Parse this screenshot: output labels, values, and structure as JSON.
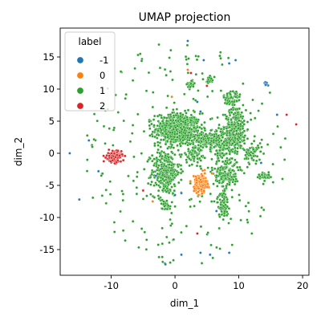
{
  "chart_data": {
    "type": "scatter",
    "title": "UMAP projection",
    "xlabel": "dim_1",
    "ylabel": "dim_2",
    "xlim": [
      -18,
      21
    ],
    "ylim": [
      -19,
      19.5
    ],
    "xticks": [
      -10,
      0,
      10,
      20
    ],
    "yticks": [
      -15,
      -10,
      -5,
      0,
      5,
      10,
      15
    ],
    "grid": false,
    "legend": {
      "title": "label",
      "placement": "top-left",
      "entries": [
        {
          "label": "-1",
          "color": "#1f77b4"
        },
        {
          "label": "0",
          "color": "#ff7f0e"
        },
        {
          "label": "1",
          "color": "#2ca02c"
        },
        {
          "label": "2",
          "color": "#d62728"
        }
      ]
    },
    "series": [
      {
        "label": "1",
        "color": "#2ca02c",
        "clusters": [
          {
            "cx": 0.5,
            "cy": 3.8,
            "rx": 3.2,
            "ry": 2.2,
            "n": 650
          },
          {
            "cx": -1.5,
            "cy": -3.0,
            "rx": 2.0,
            "ry": 3.2,
            "n": 300
          },
          {
            "cx": 9.5,
            "cy": 4.0,
            "rx": 1.5,
            "ry": 3.2,
            "n": 280
          },
          {
            "cx": 7.5,
            "cy": 1.5,
            "rx": 1.8,
            "ry": 1.8,
            "n": 150
          },
          {
            "cx": 8.0,
            "cy": -3.0,
            "rx": 1.8,
            "ry": 2.2,
            "n": 180
          },
          {
            "cx": 5.0,
            "cy": 2.0,
            "rx": 1.6,
            "ry": 1.0,
            "n": 120
          },
          {
            "cx": 3.0,
            "cy": 0.0,
            "rx": 1.2,
            "ry": 1.5,
            "n": 80
          },
          {
            "cx": 7.5,
            "cy": -8.0,
            "rx": 0.8,
            "ry": 1.8,
            "n": 70
          },
          {
            "cx": 9.0,
            "cy": 8.5,
            "rx": 1.2,
            "ry": 1.5,
            "n": 60
          },
          {
            "cx": 12.0,
            "cy": 0.0,
            "rx": 1.0,
            "ry": 1.5,
            "n": 60
          },
          {
            "cx": 14.0,
            "cy": -3.5,
            "rx": 0.8,
            "ry": 0.5,
            "n": 40
          },
          {
            "cx": 2.5,
            "cy": 10.8,
            "rx": 0.5,
            "ry": 0.6,
            "n": 25
          },
          {
            "cx": 5.5,
            "cy": 11.5,
            "rx": 0.5,
            "ry": 0.6,
            "n": 20
          },
          {
            "cx": -1.5,
            "cy": -8.0,
            "rx": 0.7,
            "ry": 0.7,
            "n": 25
          }
        ],
        "scatter": {
          "cx": 1.5,
          "cy": 0.0,
          "rx": 16.0,
          "ry": 17.5,
          "n": 260
        }
      },
      {
        "label": "0",
        "color": "#ff7f0e",
        "clusters": [
          {
            "cx": 4.0,
            "cy": -4.7,
            "rx": 0.9,
            "ry": 1.3,
            "n": 220
          }
        ],
        "points": [
          [
            -0.5,
            8.8
          ],
          [
            2.0,
            13.0
          ],
          [
            -3.5,
            -7.5
          ]
        ]
      },
      {
        "label": "2",
        "color": "#d62728",
        "clusters": [
          {
            "cx": -9.5,
            "cy": -0.5,
            "rx": 1.0,
            "ry": 0.8,
            "n": 160
          }
        ],
        "points": [
          [
            5.0,
            10.5
          ],
          [
            17.5,
            6.0
          ],
          [
            19.0,
            4.5
          ],
          [
            3.5,
            -12.5
          ],
          [
            -5.0,
            -5.8
          ],
          [
            2.5,
            12.5
          ]
        ]
      },
      {
        "label": "-1",
        "color": "#1f77b4",
        "clusters": [
          {
            "cx": 14.3,
            "cy": 10.8,
            "rx": 0.3,
            "ry": 0.4,
            "n": 8
          }
        ],
        "points": [
          [
            2.0,
            17.5
          ],
          [
            4.5,
            14.5
          ],
          [
            8.5,
            14.0
          ],
          [
            9.5,
            14.5
          ],
          [
            -13.5,
            2.0
          ],
          [
            -16.5,
            0.0
          ],
          [
            -15.0,
            -7.2
          ],
          [
            -12.0,
            -2.8
          ],
          [
            0.0,
            -6.5
          ],
          [
            1.0,
            -6.2
          ],
          [
            3.5,
            8.0
          ],
          [
            4.0,
            6.5
          ],
          [
            16.0,
            6.0
          ],
          [
            13.5,
            -1.5
          ],
          [
            -1.5,
            -17.3
          ],
          [
            1.0,
            -15.8
          ],
          [
            4.0,
            -15.5
          ],
          [
            5.5,
            -15.8
          ],
          [
            8.5,
            -15.5
          ],
          [
            6.5,
            -9.0
          ],
          [
            -3.0,
            -3.5
          ]
        ]
      }
    ]
  }
}
